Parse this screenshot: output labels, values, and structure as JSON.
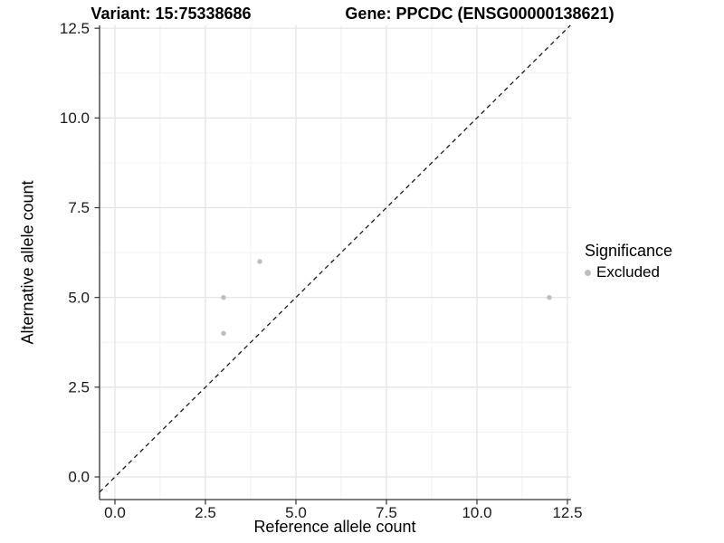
{
  "chart_data": {
    "type": "scatter",
    "titles": {
      "left": "Variant: 15:75338686",
      "right": "Gene: PPCDC (ENSG00000138621)"
    },
    "xlabel": "Reference allele count",
    "ylabel": "Alternative allele count",
    "x_ticks": [
      0,
      2.5,
      5,
      7.5,
      10,
      12.5
    ],
    "y_ticks": [
      0,
      2.5,
      5,
      7.5,
      10,
      12.5
    ],
    "tick_decimals": 1,
    "xlim": [
      -0.425,
      12.6
    ],
    "ylim": [
      -0.63,
      12.58
    ],
    "minor_step": 1.25,
    "grid": true,
    "identity_line": {
      "type": "abline",
      "slope": 1,
      "intercept": 0,
      "style": "dashed",
      "color": "#1a1a1a"
    },
    "series": [
      {
        "name": "Excluded",
        "color": "#bdbdbd",
        "points": [
          [
            3,
            4
          ],
          [
            3,
            5
          ],
          [
            4,
            6
          ],
          [
            12,
            5
          ]
        ]
      }
    ],
    "legend": {
      "title": "Significance",
      "position": "right",
      "items": [
        {
          "label": "Excluded",
          "color": "#bdbdbd",
          "marker": "circle"
        }
      ]
    },
    "colors": {
      "grid_major": "#e3e3e3",
      "grid_minor": "#f0f0f0",
      "axis": "#333333",
      "tick_text": "#1a1a1a"
    }
  }
}
